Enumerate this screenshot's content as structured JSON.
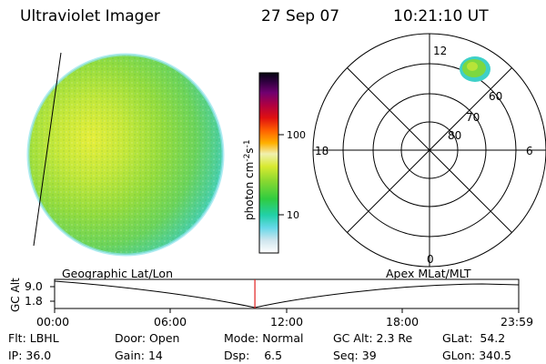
{
  "header": {
    "instrument": "Ultraviolet Imager",
    "date": "27 Sep 07",
    "time": "10:21:10 UT"
  },
  "colorbar": {
    "unit_label": "photon cm-2s-1",
    "ticks": [
      "100",
      "10"
    ],
    "scale": "log"
  },
  "polar_plot": {
    "mlt_labels": [
      "12",
      "18",
      "6",
      "0"
    ],
    "mlat_labels": [
      "60",
      "70",
      "80"
    ]
  },
  "orbit_panel": {
    "left_title": "Geographic Lat/Lon",
    "right_title": "Apex MLat/MLT",
    "ylabel": "GC Alt",
    "yticks": [
      "9.0",
      "1.8"
    ],
    "xticks": [
      "00:00",
      "06:00",
      "12:00",
      "18:00",
      "23:59"
    ],
    "current_marker_time": "10:21",
    "marker_color": "#e02020"
  },
  "status": {
    "flt": {
      "label": "Flt:",
      "value": "LBHL"
    },
    "door": {
      "label": "Door:",
      "value": "Open"
    },
    "mode": {
      "label": "Mode:",
      "value": "Normal"
    },
    "gc_alt": {
      "label": "GC Alt:",
      "value": "2.3 Re"
    },
    "glat": {
      "label": "GLat:",
      "value": "54.2"
    },
    "ip": {
      "label": "IP:",
      "value": "36.0"
    },
    "gain": {
      "label": "Gain:",
      "value": "14"
    },
    "dsp": {
      "label": "Dsp:",
      "value": "6.5"
    },
    "seq": {
      "label": "Seq:",
      "value": "39"
    },
    "glon": {
      "label": "GLon:",
      "value": "340.5"
    }
  }
}
